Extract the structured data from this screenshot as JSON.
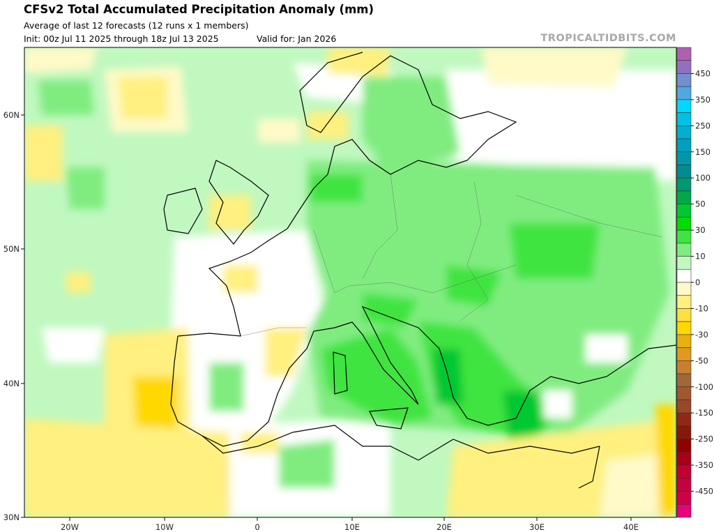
{
  "header": {
    "title": "CFSv2 Total Accumulated Precipitation Anomaly (mm)",
    "subtitle": "Average of last 12 forecasts (12 runs x 1 members)",
    "init": "Init: 00z Jul 11 2025 through 18z Jul 13 2025",
    "valid": "Valid for: Jan 2026",
    "watermark": "TROPICALTIDBITS.COM"
  },
  "map": {
    "lon_labels": [
      "20W",
      "10W",
      "0",
      "10E",
      "20E",
      "30E",
      "40E"
    ],
    "lat_labels": [
      "60N",
      "50N",
      "40N",
      "30N"
    ]
  },
  "colorbar": {
    "colors": [
      "#b060b0",
      "#9070c0",
      "#7090d0",
      "#50a8e0",
      "#00d8ff",
      "#00c0e8",
      "#00b0d0",
      "#00a0c0",
      "#0098a8",
      "#008c90",
      "#009870",
      "#00a848",
      "#00c830",
      "#00dc00",
      "#40e440",
      "#80ec80",
      "#c0f8c0",
      "#ffffff",
      "#fffac8",
      "#fff080",
      "#ffe040",
      "#ffd800",
      "#e8b010",
      "#e09820",
      "#c88030",
      "#a06838",
      "#a05830",
      "#984828",
      "#902818",
      "#881808",
      "#900000",
      "#a80018",
      "#c00030",
      "#c80040",
      "#d00048",
      "#e8007a"
    ],
    "labels": [
      "450",
      "350",
      "250",
      "150",
      "100",
      "50",
      "30",
      "10",
      "0",
      "-10",
      "-30",
      "-50",
      "-100",
      "-150",
      "-250",
      "-350",
      "-450"
    ]
  }
}
